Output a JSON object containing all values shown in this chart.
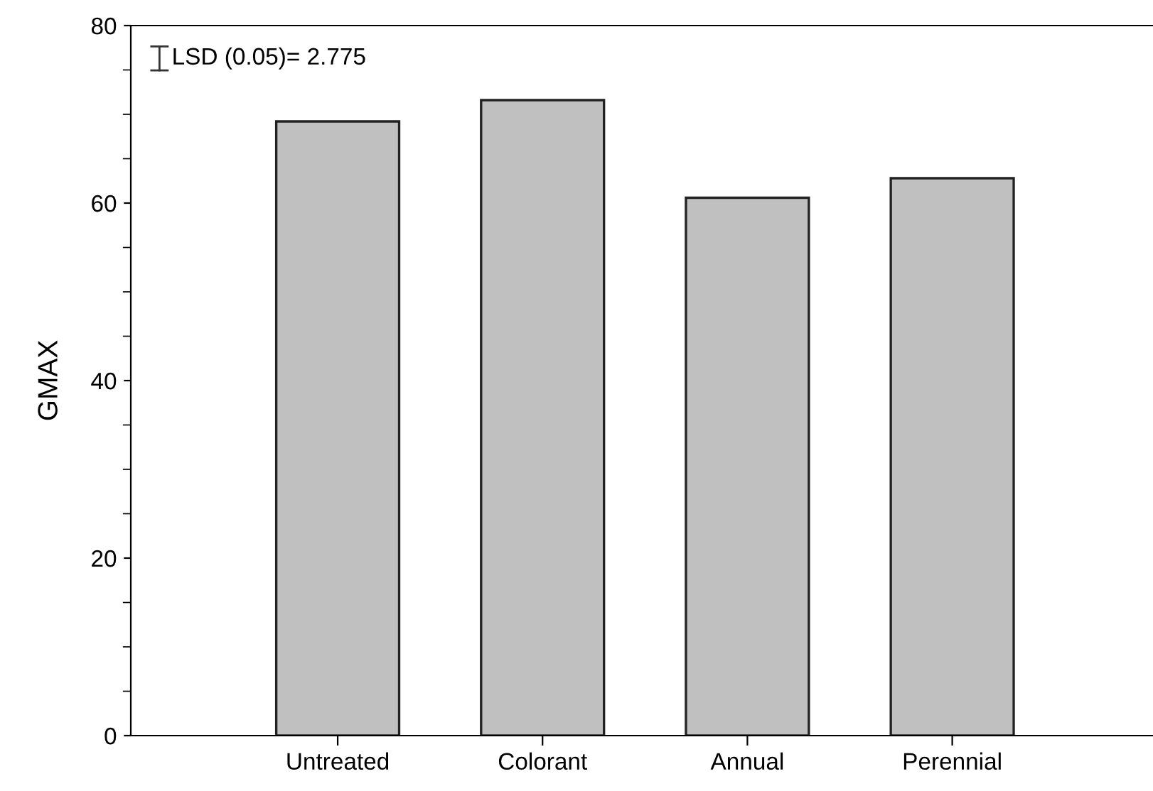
{
  "chart_data": {
    "type": "bar",
    "ylabel": "GMAX",
    "categories": [
      "Untreated",
      "Colorant",
      "Annual",
      "Perennial"
    ],
    "values": [
      69.2,
      71.6,
      60.6,
      62.8
    ],
    "color": "#c0c0c0",
    "ylim": [
      0,
      80
    ],
    "yticks": [
      0,
      20,
      40,
      60,
      80
    ],
    "grid": false,
    "legend": false,
    "annotations": [
      "LSD (0.05)= 2.775"
    ]
  }
}
